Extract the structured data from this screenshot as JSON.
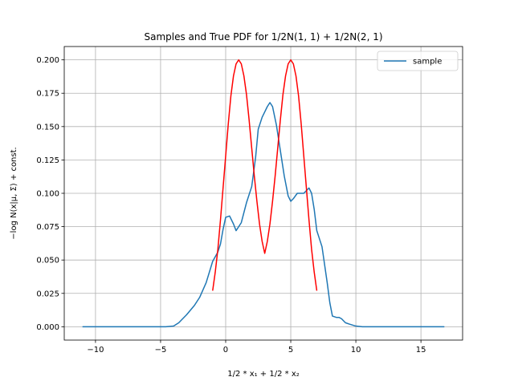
{
  "chart_data": {
    "type": "line",
    "title": "Samples and True PDF for 1/2N(1, 1) + 1/2N(2, 1)",
    "xlabel": "1/2 * x₁ + 1/2 * x₂",
    "ylabel": "−log  N(x|μ, Σ) + const.",
    "xlim": [
      -12.4,
      18.2
    ],
    "ylim": [
      -0.01,
      0.21
    ],
    "xticks": [
      -10,
      -5,
      0,
      5,
      10,
      15
    ],
    "yticks": [
      0.0,
      0.025,
      0.05,
      0.075,
      0.1,
      0.125,
      0.15,
      0.175,
      0.2
    ],
    "xtick_labels": [
      "−10",
      "−5",
      "0",
      "5",
      "10",
      "15"
    ],
    "ytick_labels": [
      "0.000",
      "0.025",
      "0.050",
      "0.075",
      "0.100",
      "0.125",
      "0.150",
      "0.175",
      "0.200"
    ],
    "grid": true,
    "legend": {
      "position": "top-right",
      "entries": [
        "sample"
      ]
    },
    "series": [
      {
        "name": "sample",
        "color": "#1f77b4",
        "x": [
          -11,
          -8,
          -6,
          -4.6,
          -4,
          -3.6,
          -3,
          -2.4,
          -2,
          -1.5,
          -1,
          -0.6,
          -0.4,
          -0.2,
          0,
          0.3,
          0.6,
          0.8,
          1.2,
          1.6,
          2.0,
          2.3,
          2.5,
          2.8,
          3.0,
          3.2,
          3.4,
          3.6,
          3.9,
          4.2,
          4.5,
          4.8,
          5.0,
          5.2,
          5.5,
          5.8,
          6.0,
          6.2,
          6.4,
          6.6,
          6.8,
          7.0,
          7.4,
          7.8,
          8.0,
          8.2,
          8.5,
          8.7,
          8.9,
          9.2,
          9.5,
          10.0,
          10.5,
          12,
          14,
          16.8
        ],
        "values": [
          0.0,
          0.0,
          0.0,
          0.0,
          0.0005,
          0.003,
          0.009,
          0.016,
          0.022,
          0.033,
          0.049,
          0.056,
          0.062,
          0.073,
          0.082,
          0.083,
          0.077,
          0.072,
          0.078,
          0.093,
          0.105,
          0.127,
          0.148,
          0.157,
          0.161,
          0.165,
          0.168,
          0.165,
          0.151,
          0.132,
          0.113,
          0.098,
          0.094,
          0.096,
          0.1,
          0.1,
          0.1,
          0.102,
          0.104,
          0.1,
          0.088,
          0.072,
          0.06,
          0.033,
          0.018,
          0.008,
          0.007,
          0.007,
          0.006,
          0.003,
          0.002,
          0.0005,
          0.0,
          0.0,
          0.0,
          0.0
        ]
      },
      {
        "name": "",
        "color": "#ff0000",
        "x": [
          -1.0,
          -0.8,
          -0.6,
          -0.4,
          -0.2,
          0.0,
          0.2,
          0.4,
          0.6,
          0.8,
          1.0,
          1.2,
          1.4,
          1.6,
          1.8,
          2.0,
          2.2,
          2.4,
          2.6,
          2.8,
          3.0,
          3.2,
          3.4,
          3.6,
          3.8,
          4.0,
          4.2,
          4.4,
          4.6,
          4.8,
          5.0,
          5.2,
          5.4,
          5.6,
          5.8,
          6.0,
          6.2,
          6.4,
          6.6,
          6.8,
          7.0
        ],
        "values": [
          0.027,
          0.041,
          0.058,
          0.08,
          0.104,
          0.128,
          0.152,
          0.173,
          0.188,
          0.197,
          0.2,
          0.197,
          0.188,
          0.174,
          0.155,
          0.134,
          0.113,
          0.094,
          0.077,
          0.064,
          0.055,
          0.064,
          0.077,
          0.094,
          0.113,
          0.134,
          0.155,
          0.174,
          0.188,
          0.197,
          0.2,
          0.197,
          0.188,
          0.173,
          0.152,
          0.128,
          0.104,
          0.08,
          0.058,
          0.041,
          0.027
        ]
      }
    ]
  }
}
